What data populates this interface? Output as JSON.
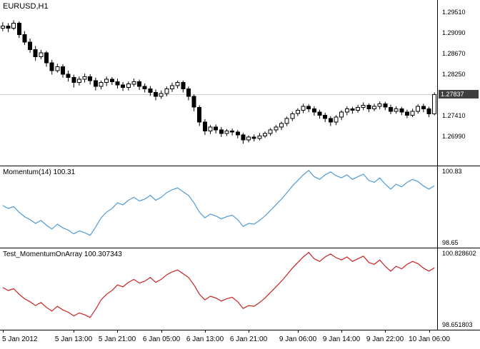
{
  "window": {
    "bg": "#ffffff",
    "frame_color": "#000000"
  },
  "colors": {
    "candle_up_fill": "#ffffff",
    "candle_down_fill": "#000000",
    "candle_outline": "#000000",
    "current_price_line": "#cfcfcf",
    "price_badge_bg": "#3f3f3f",
    "price_badge_text": "#ffffff",
    "momentum_line": "#4f9bd5",
    "test_line": "#cc2222"
  },
  "time_axis": {
    "ticks": [
      {
        "label": "5 Jan 2012",
        "bar": 0
      },
      {
        "label": "5 Jan 13:00",
        "bar": 13
      },
      {
        "label": "5 Jan 21:00",
        "bar": 21
      },
      {
        "label": "6 Jan 05:00",
        "bar": 29
      },
      {
        "label": "6 Jan 13:00",
        "bar": 37
      },
      {
        "label": "6 Jan 21:00",
        "bar": 45
      },
      {
        "label": "9 Jan 06:00",
        "bar": 54
      },
      {
        "label": "9 Jan 14:00",
        "bar": 62
      },
      {
        "label": "9 Jan 22:00",
        "bar": 70
      },
      {
        "label": "10 Jan 06:00",
        "bar": 78
      }
    ]
  },
  "chart_data": [
    {
      "type": "candlestick",
      "title": "EURUSD,H1",
      "symbol": "EURUSD",
      "timeframe": "H1",
      "ylim": [
        1.264,
        1.2975
      ],
      "current_price": 1.27837,
      "current_price_label": "1.27837",
      "y_tick_labels": [
        "1.29510",
        "1.29090",
        "1.28670",
        "1.28250",
        "1.27410",
        "1.26990"
      ],
      "candles_ohlc": [
        [
          1.2918,
          1.293,
          1.2912,
          1.2922
        ],
        [
          1.2922,
          1.2928,
          1.291,
          1.2918
        ],
        [
          1.2918,
          1.2934,
          1.2914,
          1.2928
        ],
        [
          1.2928,
          1.2932,
          1.2898,
          1.2905
        ],
        [
          1.2905,
          1.2912,
          1.2884,
          1.289
        ],
        [
          1.289,
          1.2897,
          1.2868,
          1.2875
        ],
        [
          1.2875,
          1.2882,
          1.2852,
          1.286
        ],
        [
          1.286,
          1.2874,
          1.2855,
          1.2868
        ],
        [
          1.2868,
          1.2872,
          1.284,
          1.2848
        ],
        [
          1.2848,
          1.2854,
          1.2824,
          1.2832
        ],
        [
          1.2832,
          1.2846,
          1.2828,
          1.284
        ],
        [
          1.284,
          1.2845,
          1.2818,
          1.2825
        ],
        [
          1.2825,
          1.2832,
          1.281,
          1.2818
        ],
        [
          1.2818,
          1.2824,
          1.2798,
          1.2808
        ],
        [
          1.2808,
          1.282,
          1.2802,
          1.2815
        ],
        [
          1.2815,
          1.2826,
          1.2808,
          1.282
        ],
        [
          1.282,
          1.2825,
          1.2804,
          1.2812
        ],
        [
          1.2812,
          1.2818,
          1.2792,
          1.28
        ],
        [
          1.28,
          1.2812,
          1.2794,
          1.2808
        ],
        [
          1.2808,
          1.282,
          1.2801,
          1.2815
        ],
        [
          1.2815,
          1.2819,
          1.2803,
          1.281
        ],
        [
          1.281,
          1.2816,
          1.2796,
          1.2803
        ],
        [
          1.2803,
          1.2809,
          1.2791,
          1.2798
        ],
        [
          1.2798,
          1.281,
          1.2792,
          1.2805
        ],
        [
          1.2805,
          1.2816,
          1.28,
          1.281
        ],
        [
          1.281,
          1.2814,
          1.2793,
          1.28
        ],
        [
          1.28,
          1.2806,
          1.2788,
          1.2795
        ],
        [
          1.2795,
          1.2801,
          1.2781,
          1.2788
        ],
        [
          1.2788,
          1.2794,
          1.2772,
          1.278
        ],
        [
          1.278,
          1.2792,
          1.2775,
          1.2786
        ],
        [
          1.2786,
          1.28,
          1.278,
          1.2795
        ],
        [
          1.2795,
          1.2808,
          1.2789,
          1.2802
        ],
        [
          1.2802,
          1.2812,
          1.2796,
          1.2808
        ],
        [
          1.2808,
          1.2812,
          1.2788,
          1.2795
        ],
        [
          1.2795,
          1.28,
          1.2772,
          1.278
        ],
        [
          1.278,
          1.2784,
          1.275,
          1.2758
        ],
        [
          1.2758,
          1.2762,
          1.272,
          1.2728
        ],
        [
          1.2728,
          1.2734,
          1.2702,
          1.271
        ],
        [
          1.271,
          1.2722,
          1.2704,
          1.2718
        ],
        [
          1.2718,
          1.2723,
          1.2705,
          1.2712
        ],
        [
          1.2712,
          1.2718,
          1.2698,
          1.2705
        ],
        [
          1.2705,
          1.2714,
          1.27,
          1.271
        ],
        [
          1.271,
          1.2715,
          1.2701,
          1.2708
        ],
        [
          1.2708,
          1.2712,
          1.2695,
          1.2702
        ],
        [
          1.2702,
          1.2706,
          1.2684,
          1.2692
        ],
        [
          1.2692,
          1.2701,
          1.2687,
          1.2698
        ],
        [
          1.2698,
          1.2703,
          1.2689,
          1.2695
        ],
        [
          1.2695,
          1.2706,
          1.2691,
          1.27
        ],
        [
          1.27,
          1.2709,
          1.2696,
          1.2705
        ],
        [
          1.2705,
          1.2716,
          1.27,
          1.2712
        ],
        [
          1.2712,
          1.2722,
          1.2707,
          1.2718
        ],
        [
          1.2718,
          1.2729,
          1.2712,
          1.2725
        ],
        [
          1.2725,
          1.2739,
          1.272,
          1.2735
        ],
        [
          1.2735,
          1.2749,
          1.273,
          1.2745
        ],
        [
          1.2745,
          1.2756,
          1.274,
          1.2752
        ],
        [
          1.2752,
          1.2765,
          1.2746,
          1.276
        ],
        [
          1.276,
          1.2764,
          1.2748,
          1.2755
        ],
        [
          1.2755,
          1.276,
          1.2741,
          1.2748
        ],
        [
          1.2748,
          1.2753,
          1.2735,
          1.2742
        ],
        [
          1.2742,
          1.2747,
          1.2728,
          1.2735
        ],
        [
          1.2735,
          1.274,
          1.272,
          1.2728
        ],
        [
          1.2728,
          1.2742,
          1.2722,
          1.2738
        ],
        [
          1.2738,
          1.2752,
          1.2732,
          1.2748
        ],
        [
          1.2748,
          1.276,
          1.2742,
          1.2755
        ],
        [
          1.2755,
          1.2759,
          1.2745,
          1.2752
        ],
        [
          1.2752,
          1.2763,
          1.2747,
          1.2758
        ],
        [
          1.2758,
          1.2768,
          1.2752,
          1.2762
        ],
        [
          1.2762,
          1.2766,
          1.2748,
          1.2755
        ],
        [
          1.2755,
          1.2765,
          1.275,
          1.276
        ],
        [
          1.276,
          1.277,
          1.2754,
          1.2765
        ],
        [
          1.2765,
          1.2769,
          1.2752,
          1.2758
        ],
        [
          1.2758,
          1.2763,
          1.2744,
          1.275
        ],
        [
          1.275,
          1.276,
          1.2745,
          1.2755
        ],
        [
          1.2755,
          1.2759,
          1.2742,
          1.2748
        ],
        [
          1.2748,
          1.2753,
          1.2736,
          1.2742
        ],
        [
          1.2742,
          1.2755,
          1.2738,
          1.275
        ],
        [
          1.275,
          1.2764,
          1.2745,
          1.276
        ],
        [
          1.276,
          1.2765,
          1.2748,
          1.2755
        ],
        [
          1.2755,
          1.2759,
          1.2738,
          1.2745
        ],
        [
          1.2745,
          1.2788,
          1.2742,
          1.2784
        ]
      ]
    },
    {
      "type": "line",
      "title": "Momentum(14) 100.31",
      "indicator_name": "Momentum(14)",
      "current_value": "100.31",
      "ylim": [
        98.65,
        100.83
      ],
      "scale_labels": [
        "100.83",
        "98.65"
      ],
      "series": [
        {
          "name": "Momentum",
          "color": "#4f9bd5",
          "values": [
            99.78,
            99.7,
            99.75,
            99.6,
            99.48,
            99.4,
            99.3,
            99.38,
            99.25,
            99.15,
            99.28,
            99.18,
            99.12,
            99.02,
            99.1,
            99.05,
            98.98,
            99.2,
            99.45,
            99.6,
            99.7,
            99.85,
            99.8,
            99.92,
            100.0,
            99.9,
            99.95,
            100.05,
            99.92,
            100.0,
            100.12,
            100.2,
            100.25,
            100.15,
            100.05,
            99.85,
            99.6,
            99.45,
            99.55,
            99.5,
            99.42,
            99.48,
            99.52,
            99.4,
            99.22,
            99.3,
            99.28,
            99.38,
            99.5,
            99.65,
            99.8,
            99.95,
            100.12,
            100.3,
            100.45,
            100.6,
            100.72,
            100.55,
            100.48,
            100.6,
            100.68,
            100.58,
            100.52,
            100.6,
            100.48,
            100.55,
            100.62,
            100.45,
            100.4,
            100.52,
            100.35,
            100.22,
            100.35,
            100.28,
            100.4,
            100.48,
            100.42,
            100.3,
            100.22,
            100.31
          ]
        }
      ]
    },
    {
      "type": "line",
      "title": "Test_MomentumOnArray 100.307343",
      "indicator_name": "Test_MomentumOnArray",
      "current_value": "100.307343",
      "ylim": [
        98.651803,
        100.828602
      ],
      "scale_labels": [
        "100.828602",
        "98.651803"
      ],
      "series": [
        {
          "name": "TestMomentumOnArray",
          "color": "#cc2222",
          "values": [
            99.78,
            99.7,
            99.75,
            99.6,
            99.48,
            99.4,
            99.3,
            99.38,
            99.25,
            99.15,
            99.28,
            99.18,
            99.12,
            99.02,
            99.1,
            99.05,
            98.98,
            99.2,
            99.45,
            99.6,
            99.7,
            99.85,
            99.8,
            99.92,
            100.0,
            99.9,
            99.95,
            100.05,
            99.92,
            100.0,
            100.12,
            100.2,
            100.25,
            100.15,
            100.05,
            99.85,
            99.6,
            99.45,
            99.55,
            99.5,
            99.42,
            99.48,
            99.52,
            99.4,
            99.22,
            99.3,
            99.28,
            99.38,
            99.5,
            99.65,
            99.8,
            99.95,
            100.12,
            100.3,
            100.45,
            100.6,
            100.72,
            100.55,
            100.48,
            100.6,
            100.68,
            100.58,
            100.52,
            100.6,
            100.48,
            100.55,
            100.62,
            100.45,
            100.4,
            100.52,
            100.35,
            100.22,
            100.35,
            100.28,
            100.4,
            100.48,
            100.42,
            100.3,
            100.22,
            100.31
          ]
        }
      ]
    }
  ]
}
